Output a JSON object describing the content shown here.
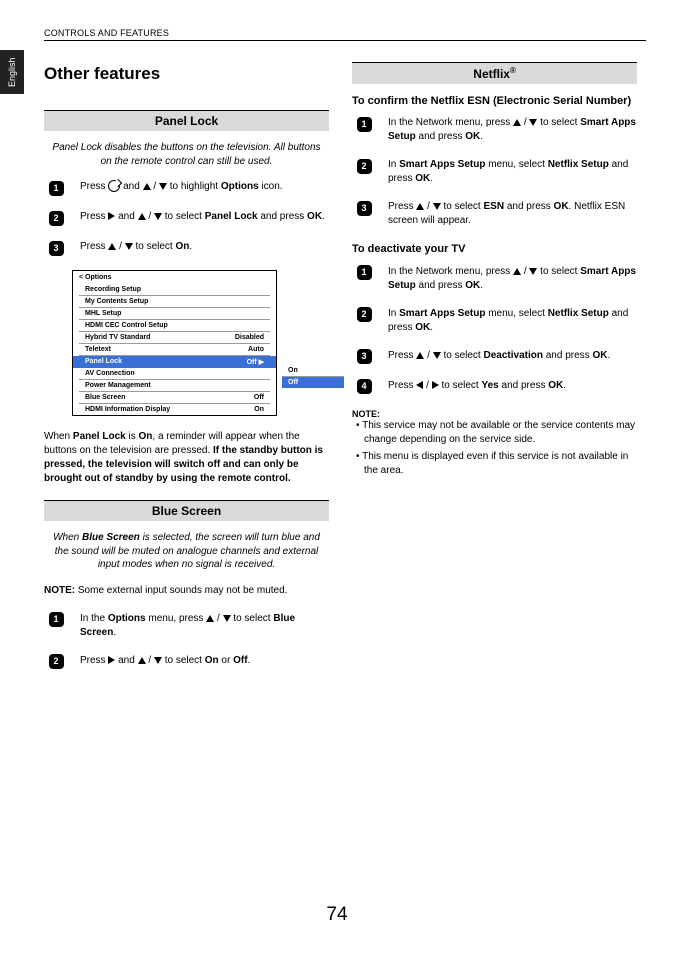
{
  "header": "CONTROLS AND FEATURES",
  "language_tab": "English",
  "main_title": "Other features",
  "page_number": "74",
  "panel_lock": {
    "heading": "Panel Lock",
    "intro": "Panel Lock disables the buttons on the television. All buttons on the remote control can still be used.",
    "steps": {
      "s1_a": "Press ",
      "s1_b": " and ",
      "s1_c": " / ",
      "s1_d": " to highlight ",
      "s1_e": "Options",
      "s1_f": " icon.",
      "s2_a": "Press ",
      "s2_b": " and ",
      "s2_c": " / ",
      "s2_d": " to select ",
      "s2_e": "Panel Lock",
      "s2_f": " and press ",
      "s2_g": "OK",
      "s2_h": ".",
      "s3_a": "Press ",
      "s3_b": " / ",
      "s3_c": " to select ",
      "s3_d": "On",
      "s3_e": "."
    },
    "osd": {
      "title": "<  Options",
      "rows": [
        {
          "label": "Recording Setup",
          "value": ""
        },
        {
          "label": "My Contents Setup",
          "value": ""
        },
        {
          "label": "MHL Setup",
          "value": ""
        },
        {
          "label": "HDMI CEC Control Setup",
          "value": ""
        },
        {
          "label": "Hybrid TV Standard",
          "value": "Disabled"
        },
        {
          "label": "Teletext",
          "value": "Auto"
        },
        {
          "label": "Panel Lock",
          "value": "Off  ▶",
          "selected": true
        },
        {
          "label": "AV Connection",
          "value": ""
        },
        {
          "label": "Power Management",
          "value": ""
        },
        {
          "label": "Blue Screen",
          "value": "Off"
        },
        {
          "label": "HDMI Information Display",
          "value": "On"
        }
      ],
      "popup": [
        {
          "label": "On"
        },
        {
          "label": "Off",
          "selected": true
        }
      ]
    },
    "after_a": "When ",
    "after_b": "Panel Lock",
    "after_c": " is ",
    "after_d": "On",
    "after_e": ", a reminder will appear when the buttons on the television are pressed. ",
    "after_f": "If the standby button is pressed, the television will switch off and can only be brought out of standby by using the remote control."
  },
  "blue_screen": {
    "heading": "Blue Screen",
    "intro_a": "When ",
    "intro_b": "Blue Screen",
    "intro_c": " is selected, the screen will turn blue and the sound will be muted on analogue channels and external input modes when no signal is received.",
    "note_a": "NOTE:",
    "note_b": " Some external input sounds may not be muted.",
    "s1_a": "In the ",
    "s1_b": "Options",
    "s1_c": " menu, press ",
    "s1_d": " / ",
    "s1_e": " to select ",
    "s1_f": "Blue Screen",
    "s1_g": ".",
    "s2_a": "Press ",
    "s2_b": " and ",
    "s2_c": " / ",
    "s2_d": " to select ",
    "s2_e": "On",
    "s2_f": " or ",
    "s2_g": "Off",
    "s2_h": "."
  },
  "netflix": {
    "heading": "Netflix",
    "reg": "®",
    "sub1": "To confirm the Netflix ESN (Electronic Serial Number)",
    "c1_a": "In the Network menu, press ",
    "c1_b": " / ",
    "c1_c": " to select ",
    "c1_d": "Smart Apps Setup",
    "c1_e": " and press ",
    "c1_f": "OK",
    "c1_g": ".",
    "c2_a": "In ",
    "c2_b": "Smart Apps Setup",
    "c2_c": " menu, select ",
    "c2_d": "Netflix Setup",
    "c2_e": " and press ",
    "c2_f": "OK",
    "c2_g": ".",
    "c3_a": "Press ",
    "c3_b": " / ",
    "c3_c": " to select ",
    "c3_d": "ESN",
    "c3_e": " and press ",
    "c3_f": "OK",
    "c3_g": ". Netflix ESN screen will appear.",
    "sub2": "To deactivate your TV",
    "d1_a": "In the Network menu, press ",
    "d1_b": " / ",
    "d1_c": " to select ",
    "d1_d": "Smart Apps Setup",
    "d1_e": " and press ",
    "d1_f": "OK",
    "d1_g": ".",
    "d2_a": "In ",
    "d2_b": "Smart Apps Setup",
    "d2_c": " menu, select ",
    "d2_d": "Netflix Setup",
    "d2_e": " and press ",
    "d2_f": "OK",
    "d2_g": ".",
    "d3_a": "Press ",
    "d3_b": " / ",
    "d3_c": " to select ",
    "d3_d": "Deactivation",
    "d3_e": " and press ",
    "d3_f": "OK",
    "d3_g": ".",
    "d4_a": "Press ",
    "d4_b": " / ",
    "d4_c": " to select ",
    "d4_d": "Yes",
    "d4_e": " and press ",
    "d4_f": "OK",
    "d4_g": ".",
    "note_label": "NOTE:",
    "notes": [
      "This service may not be available or the service contents may change depending on the service side.",
      "This menu is displayed even if this service is not available in the area."
    ]
  }
}
